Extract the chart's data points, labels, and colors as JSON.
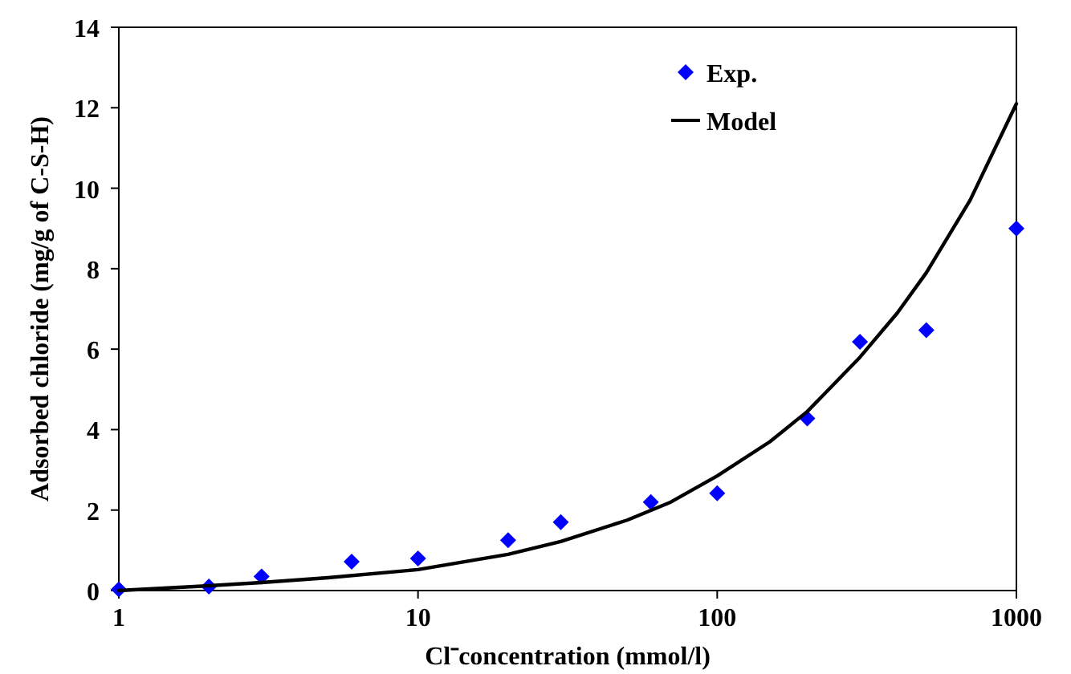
{
  "chart_data": {
    "type": "scatter",
    "xlabel": "Cl⁻concentration (mmol/l)",
    "ylabel": "Adsorbed chloride (mg/g of C-S-H)",
    "log": "x",
    "xlim": [
      1,
      1000
    ],
    "xticks": [
      1,
      10,
      100,
      1000
    ],
    "ylim": [
      0,
      14
    ],
    "yticks": [
      0,
      2,
      4,
      6,
      8,
      10,
      12,
      14
    ],
    "legend": "top right",
    "series": [
      {
        "name": "Exp.",
        "marker": "diamond",
        "color": "#0000ff",
        "x": [
          1,
          2,
          3,
          6,
          10,
          20,
          30,
          60,
          100,
          200,
          300,
          500,
          1000
        ],
        "values": [
          0.03,
          0.1,
          0.35,
          0.72,
          0.8,
          1.25,
          1.7,
          2.2,
          2.42,
          4.28,
          6.18,
          6.47,
          9.0
        ]
      },
      {
        "name": "Model",
        "type": "line",
        "marker": "none",
        "line_style": "solid",
        "color": "#000000",
        "x": [
          1,
          2,
          3,
          5,
          10,
          20,
          30,
          50,
          70,
          100,
          150,
          200,
          300,
          400,
          500,
          700,
          1000
        ],
        "values": [
          0,
          0.12,
          0.2,
          0.32,
          0.52,
          0.9,
          1.22,
          1.75,
          2.2,
          2.85,
          3.7,
          4.45,
          5.8,
          6.9,
          7.9,
          9.7,
          12.1
        ]
      }
    ]
  }
}
